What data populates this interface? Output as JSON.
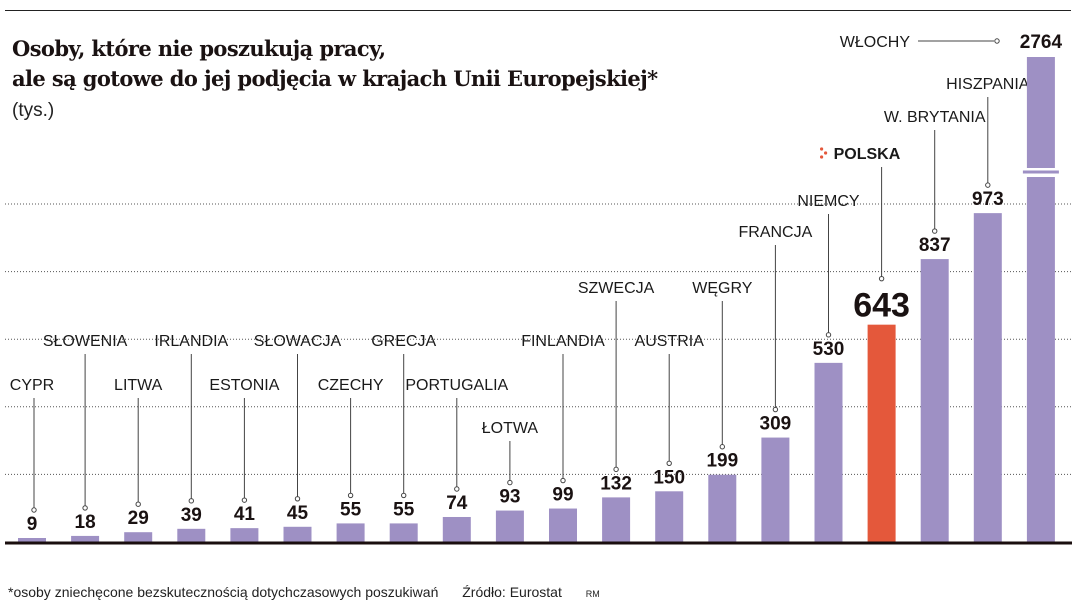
{
  "title_line1": "Osoby, które nie poszukują pracy,",
  "title_line2": "ale są gotowe do jej podjęcia w krajach Unii Europejskiej*",
  "unit": "(tys.)",
  "footnote": "*osoby zniechęcone bezskutecznością dotychczasowych poszukiwań",
  "source": "Źródło: Eurostat",
  "author": "RM",
  "chart_data": {
    "type": "bar",
    "categories": [
      "CYPR",
      "SŁOWENIA",
      "LITWA",
      "IRLANDIA",
      "ESTONIA",
      "SŁOWACJA",
      "CZECHY",
      "GRECJA",
      "PORTUGALIA",
      "ŁOTWA",
      "FINLANDIA",
      "SZWECJA",
      "AUSTRIA",
      "WĘGRY",
      "FRANCJA",
      "NIEMCY",
      "POLSKA",
      "W. BRYTANIA",
      "HISZPANIA",
      "WŁOCHY"
    ],
    "values": [
      9,
      18,
      29,
      39,
      41,
      45,
      55,
      55,
      74,
      93,
      99,
      132,
      150,
      199,
      309,
      530,
      643,
      837,
      973,
      2764
    ],
    "highlight": "POLSKA",
    "colors": {
      "bar": "#9e90c4",
      "highlight": "#e4583b"
    },
    "axis_break": "WŁOCHY",
    "grid": true
  }
}
